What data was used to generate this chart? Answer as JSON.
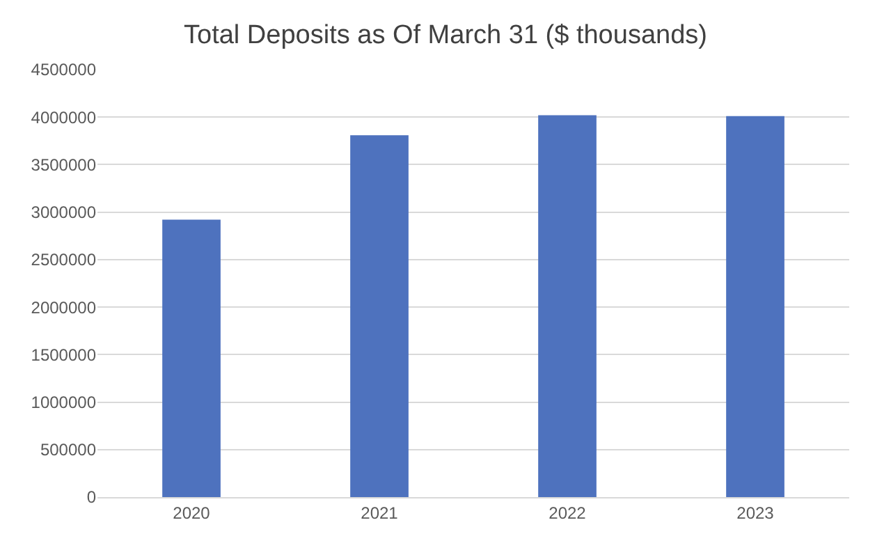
{
  "chart_data": {
    "type": "bar",
    "title": "Total Deposits as Of March 31 ($ thousands)",
    "categories": [
      "2020",
      "2021",
      "2022",
      "2023"
    ],
    "values": [
      2920000,
      3810000,
      4020000,
      4010000
    ],
    "color": "#4e72be",
    "ylim": [
      0,
      4500000
    ],
    "yticks": [
      0,
      500000,
      1000000,
      1500000,
      2000000,
      2500000,
      3000000,
      3500000,
      4000000,
      4500000
    ],
    "grid": "y"
  }
}
